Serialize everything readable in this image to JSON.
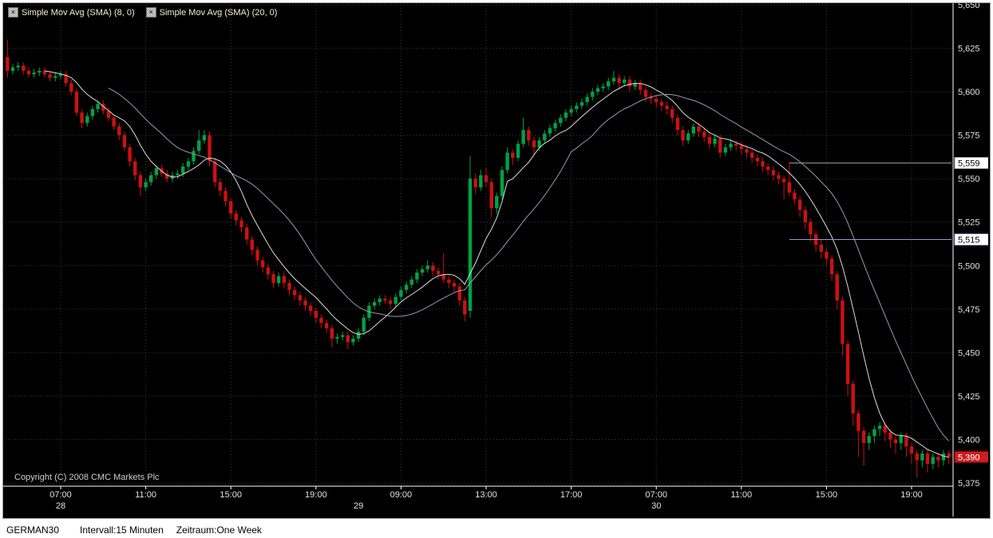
{
  "legend": {
    "close_glyph": "×"
  },
  "copyright": "Copyright (C) 2008 CMC Markets Plc",
  "footer": {
    "instrument": "GERMAN30",
    "interval": "Intervall:15 Minuten",
    "period": "Zeitraum:One Week"
  },
  "chart_data": {
    "type": "candlestick",
    "instrument": "GERMAN30",
    "interval_minutes": 15,
    "period": "One Week",
    "colors": {
      "background": "#000000",
      "up": "#00a344",
      "down": "#cc1111",
      "grid": "#3a3a3a",
      "axis_text": "#e2e2e2",
      "separator": "#ffffff",
      "sma8": "#dcdcdc",
      "sma20": "#9a9ab4",
      "copyright_text": "#cfcfcf"
    },
    "y_axis": {
      "max": 5650,
      "min": 5375,
      "step": 25,
      "values": [
        5650,
        5625,
        5600,
        5575,
        5550,
        5525,
        5500,
        5475,
        5450,
        5425,
        5400,
        5375
      ],
      "labels": [
        "5,650",
        "5,625",
        "5,600",
        "5,575",
        "5,550",
        "5,525",
        "5,500",
        "5,475",
        "5,450",
        "5,425",
        "5,400",
        "5,375"
      ]
    },
    "x_axis": {
      "ticks": [
        {
          "index": 10,
          "label": "07:00"
        },
        {
          "index": 26,
          "label": "11:00"
        },
        {
          "index": 42,
          "label": "15:00"
        },
        {
          "index": 58,
          "label": "19:00"
        },
        {
          "index": 74,
          "label": "09:00"
        },
        {
          "index": 90,
          "label": "13:00"
        },
        {
          "index": 106,
          "label": "17:00"
        },
        {
          "index": 122,
          "label": "07:00"
        },
        {
          "index": 138,
          "label": "11:00"
        },
        {
          "index": 154,
          "label": "15:00"
        },
        {
          "index": 170,
          "label": "19:00"
        }
      ],
      "day_labels": [
        {
          "index": 10,
          "label": "28"
        },
        {
          "index": 66,
          "label": "29"
        },
        {
          "index": 122,
          "label": "30"
        }
      ]
    },
    "series": [
      {
        "name": "Simple Mov Avg (SMA) (8, 0)",
        "window": 8,
        "color": "#dcdcdc"
      },
      {
        "name": "Simple Mov Avg (SMA) (20, 0)",
        "window": 20,
        "color": "#9a9ab4"
      }
    ],
    "price_lines": [
      {
        "label": "5,559",
        "value": 5559,
        "color": "#9a9a9a",
        "from_index": 147
      },
      {
        "label": "5,515",
        "value": 5515,
        "color": "#a98fd6",
        "from_index": 147
      }
    ],
    "current_price": {
      "label": "5,390",
      "value": 5390,
      "box_color": "#cc1e1e",
      "text_color": "#ffffff"
    },
    "candles": [
      [
        5620,
        5630,
        5608,
        5612
      ],
      [
        5612,
        5616,
        5610,
        5614
      ],
      [
        5614,
        5617,
        5612,
        5615
      ],
      [
        5615,
        5617,
        5610,
        5612
      ],
      [
        5612,
        5614,
        5608,
        5610
      ],
      [
        5610,
        5613,
        5608,
        5611
      ],
      [
        5611,
        5614,
        5609,
        5612
      ],
      [
        5612,
        5614,
        5608,
        5610
      ],
      [
        5610,
        5612,
        5606,
        5608
      ],
      [
        5608,
        5611,
        5606,
        5609
      ],
      [
        5609,
        5612,
        5607,
        5610
      ],
      [
        5610,
        5612,
        5603,
        5605
      ],
      [
        5605,
        5607,
        5598,
        5600
      ],
      [
        5600,
        5602,
        5586,
        5588
      ],
      [
        5588,
        5590,
        5579,
        5582
      ],
      [
        5582,
        5588,
        5580,
        5586
      ],
      [
        5586,
        5592,
        5584,
        5590
      ],
      [
        5590,
        5595,
        5588,
        5593
      ],
      [
        5593,
        5595,
        5587,
        5589
      ],
      [
        5589,
        5591,
        5583,
        5585
      ],
      [
        5585,
        5587,
        5578,
        5580
      ],
      [
        5580,
        5582,
        5572,
        5575
      ],
      [
        5575,
        5577,
        5566,
        5568
      ],
      [
        5568,
        5570,
        5557,
        5560
      ],
      [
        5560,
        5562,
        5549,
        5552
      ],
      [
        5552,
        5554,
        5540,
        5545
      ],
      [
        5545,
        5550,
        5543,
        5548
      ],
      [
        5548,
        5554,
        5546,
        5552
      ],
      [
        5552,
        5558,
        5550,
        5556
      ],
      [
        5556,
        5558,
        5551,
        5553
      ],
      [
        5553,
        5555,
        5548,
        5550
      ],
      [
        5550,
        5554,
        5548,
        5552
      ],
      [
        5552,
        5555,
        5550,
        5553
      ],
      [
        5553,
        5559,
        5551,
        5557
      ],
      [
        5557,
        5562,
        5555,
        5560
      ],
      [
        5560,
        5568,
        5558,
        5566
      ],
      [
        5566,
        5578,
        5564,
        5572
      ],
      [
        5572,
        5578,
        5570,
        5575
      ],
      [
        5575,
        5577,
        5557,
        5560
      ],
      [
        5560,
        5562,
        5545,
        5548
      ],
      [
        5548,
        5550,
        5540,
        5543
      ],
      [
        5543,
        5545,
        5534,
        5537
      ],
      [
        5537,
        5539,
        5527,
        5530
      ],
      [
        5530,
        5532,
        5523,
        5526
      ],
      [
        5526,
        5528,
        5519,
        5522
      ],
      [
        5522,
        5524,
        5512,
        5515
      ],
      [
        5515,
        5517,
        5506,
        5509
      ],
      [
        5509,
        5511,
        5500,
        5503
      ],
      [
        5503,
        5505,
        5496,
        5499
      ],
      [
        5499,
        5501,
        5492,
        5495
      ],
      [
        5495,
        5497,
        5487,
        5490
      ],
      [
        5490,
        5496,
        5488,
        5494
      ],
      [
        5494,
        5496,
        5487,
        5490
      ],
      [
        5490,
        5492,
        5483,
        5486
      ],
      [
        5486,
        5488,
        5480,
        5483
      ],
      [
        5483,
        5485,
        5477,
        5480
      ],
      [
        5480,
        5482,
        5474,
        5477
      ],
      [
        5477,
        5479,
        5471,
        5474
      ],
      [
        5474,
        5476,
        5467,
        5470
      ],
      [
        5470,
        5472,
        5464,
        5467
      ],
      [
        5467,
        5469,
        5461,
        5464
      ],
      [
        5464,
        5466,
        5453,
        5458
      ],
      [
        5458,
        5461,
        5455,
        5459
      ],
      [
        5459,
        5462,
        5457,
        5460
      ],
      [
        5460,
        5462,
        5452,
        5456
      ],
      [
        5456,
        5460,
        5454,
        5458
      ],
      [
        5458,
        5464,
        5456,
        5462
      ],
      [
        5462,
        5472,
        5460,
        5470
      ],
      [
        5470,
        5479,
        5468,
        5477
      ],
      [
        5477,
        5481,
        5475,
        5479
      ],
      [
        5479,
        5483,
        5477,
        5481
      ],
      [
        5481,
        5483,
        5478,
        5480
      ],
      [
        5480,
        5482,
        5475,
        5478
      ],
      [
        5478,
        5484,
        5476,
        5482
      ],
      [
        5482,
        5488,
        5480,
        5486
      ],
      [
        5486,
        5491,
        5484,
        5489
      ],
      [
        5489,
        5494,
        5487,
        5492
      ],
      [
        5492,
        5498,
        5490,
        5496
      ],
      [
        5496,
        5500,
        5494,
        5498
      ],
      [
        5498,
        5503,
        5496,
        5500
      ],
      [
        5500,
        5502,
        5494,
        5497
      ],
      [
        5497,
        5499,
        5492,
        5495
      ],
      [
        5495,
        5507,
        5490,
        5492
      ],
      [
        5492,
        5494,
        5487,
        5490
      ],
      [
        5490,
        5492,
        5485,
        5488
      ],
      [
        5488,
        5490,
        5477,
        5480
      ],
      [
        5480,
        5482,
        5468,
        5472
      ],
      [
        5474,
        5563,
        5470,
        5550
      ],
      [
        5550,
        5553,
        5541,
        5545
      ],
      [
        5545,
        5555,
        5543,
        5552
      ],
      [
        5552,
        5556,
        5545,
        5548
      ],
      [
        5548,
        5550,
        5528,
        5533
      ],
      [
        5533,
        5542,
        5530,
        5540
      ],
      [
        5540,
        5557,
        5538,
        5555
      ],
      [
        5555,
        5568,
        5553,
        5565
      ],
      [
        5565,
        5567,
        5558,
        5562
      ],
      [
        5562,
        5572,
        5560,
        5570
      ],
      [
        5570,
        5585,
        5568,
        5578
      ],
      [
        5578,
        5580,
        5569,
        5572
      ],
      [
        5572,
        5574,
        5564,
        5568
      ],
      [
        5568,
        5574,
        5566,
        5572
      ],
      [
        5572,
        5578,
        5570,
        5576
      ],
      [
        5576,
        5581,
        5574,
        5579
      ],
      [
        5579,
        5584,
        5577,
        5582
      ],
      [
        5582,
        5587,
        5580,
        5585
      ],
      [
        5585,
        5590,
        5583,
        5588
      ],
      [
        5588,
        5592,
        5586,
        5590
      ],
      [
        5590,
        5594,
        5588,
        5592
      ],
      [
        5592,
        5596,
        5590,
        5594
      ],
      [
        5594,
        5599,
        5592,
        5597
      ],
      [
        5597,
        5602,
        5595,
        5600
      ],
      [
        5600,
        5604,
        5598,
        5602
      ],
      [
        5602,
        5605,
        5600,
        5603
      ],
      [
        5603,
        5608,
        5601,
        5606
      ],
      [
        5606,
        5612,
        5604,
        5608
      ],
      [
        5608,
        5610,
        5602,
        5605
      ],
      [
        5605,
        5609,
        5603,
        5607
      ],
      [
        5607,
        5609,
        5600,
        5603
      ],
      [
        5603,
        5607,
        5601,
        5605
      ],
      [
        5605,
        5607,
        5598,
        5601
      ],
      [
        5601,
        5603,
        5594,
        5597
      ],
      [
        5597,
        5599,
        5593,
        5596
      ],
      [
        5596,
        5598,
        5591,
        5594
      ],
      [
        5594,
        5596,
        5589,
        5592
      ],
      [
        5592,
        5594,
        5587,
        5590
      ],
      [
        5590,
        5592,
        5582,
        5585
      ],
      [
        5585,
        5587,
        5575,
        5578
      ],
      [
        5578,
        5580,
        5569,
        5572
      ],
      [
        5572,
        5578,
        5570,
        5576
      ],
      [
        5576,
        5582,
        5574,
        5580
      ],
      [
        5580,
        5582,
        5574,
        5577
      ],
      [
        5577,
        5579,
        5571,
        5574
      ],
      [
        5574,
        5576,
        5567,
        5570
      ],
      [
        5570,
        5575,
        5568,
        5573
      ],
      [
        5573,
        5575,
        5562,
        5565
      ],
      [
        5565,
        5570,
        5563,
        5568
      ],
      [
        5568,
        5572,
        5566,
        5570
      ],
      [
        5570,
        5572,
        5566,
        5569
      ],
      [
        5569,
        5571,
        5564,
        5567
      ],
      [
        5567,
        5569,
        5562,
        5565
      ],
      [
        5565,
        5567,
        5559,
        5562
      ],
      [
        5562,
        5564,
        5557,
        5560
      ],
      [
        5560,
        5562,
        5554,
        5557
      ],
      [
        5557,
        5559,
        5552,
        5555
      ],
      [
        5555,
        5557,
        5549,
        5552
      ],
      [
        5552,
        5554,
        5547,
        5550
      ],
      [
        5550,
        5552,
        5538,
        5548
      ],
      [
        5548,
        5559,
        5540,
        5542
      ],
      [
        5542,
        5544,
        5535,
        5538
      ],
      [
        5538,
        5540,
        5528,
        5532
      ],
      [
        5532,
        5534,
        5521,
        5525
      ],
      [
        5525,
        5527,
        5514,
        5518
      ],
      [
        5518,
        5520,
        5508,
        5512
      ],
      [
        5512,
        5515,
        5504,
        5508
      ],
      [
        5508,
        5510,
        5500,
        5504
      ],
      [
        5504,
        5506,
        5491,
        5495
      ],
      [
        5495,
        5497,
        5475,
        5480
      ],
      [
        5480,
        5482,
        5448,
        5455
      ],
      [
        5455,
        5457,
        5425,
        5432
      ],
      [
        5432,
        5434,
        5408,
        5415
      ],
      [
        5415,
        5417,
        5390,
        5405
      ],
      [
        5405,
        5407,
        5385,
        5398
      ],
      [
        5398,
        5404,
        5394,
        5402
      ],
      [
        5402,
        5408,
        5398,
        5406
      ],
      [
        5406,
        5410,
        5402,
        5408
      ],
      [
        5408,
        5410,
        5399,
        5404
      ],
      [
        5404,
        5406,
        5395,
        5400
      ],
      [
        5400,
        5402,
        5392,
        5398
      ],
      [
        5398,
        5404,
        5394,
        5402
      ],
      [
        5402,
        5404,
        5390,
        5396
      ],
      [
        5396,
        5398,
        5386,
        5392
      ],
      [
        5392,
        5394,
        5378,
        5388
      ],
      [
        5388,
        5394,
        5384,
        5392
      ],
      [
        5392,
        5394,
        5381,
        5386
      ],
      [
        5386,
        5392,
        5383,
        5390
      ],
      [
        5390,
        5392,
        5384,
        5388
      ],
      [
        5388,
        5394,
        5385,
        5392
      ],
      [
        5392,
        5394,
        5386,
        5390
      ]
    ]
  }
}
